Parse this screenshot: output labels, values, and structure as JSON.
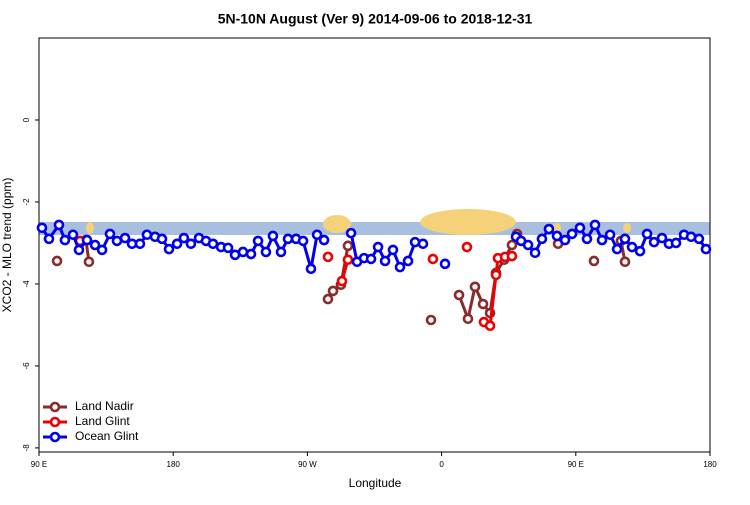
{
  "chart_data": {
    "type": "line",
    "title": "5N-10N August (Ver 9)   2014-09-06 to 2018-12-31",
    "x_label": "Longitude",
    "y_label": "XCO2 - MLO trend (ppm)",
    "xlim": [
      90,
      540
    ],
    "xticks": [
      {
        "value": 90,
        "label": "90 E"
      },
      180,
      {
        "value": 270,
        "label": "90 W"
      },
      {
        "value": 360,
        "label": "0"
      },
      {
        "value": 450,
        "label": "90 E"
      },
      {
        "value": 540,
        "label": "180"
      }
    ],
    "ylim": [
      -8.1,
      2.0
    ],
    "yticks": [
      -8,
      -6,
      -4,
      -2,
      0
    ],
    "grid": false,
    "legend": "bottom-left",
    "series": [
      {
        "name": "Land Nadir",
        "color": "#8b2a2a",
        "x": [
          102.1,
          null,
          121.5,
          123.5,
          null,
          283.8,
          287.2,
          292.5,
          297.2,
          null,
          352.9,
          null,
          371.7,
          377.7,
          382.4,
          387.8,
          392.5,
          396.5,
          401.9,
          407.2,
          410.6,
          null,
          438.1,
          null,
          462.2,
          null,
          480.3,
          483
        ],
        "values": [
          -3.44,
          null,
          -2.93,
          -3.46,
          null,
          -4.37,
          -4.17,
          -4.02,
          -3.07,
          null,
          -4.88,
          null,
          -4.27,
          -4.85,
          -4.07,
          -4.49,
          -4.71,
          -3.73,
          -3.41,
          -3.05,
          -2.78,
          null,
          -3.02,
          null,
          -3.44,
          null,
          -2.95,
          -3.46
        ]
      },
      {
        "name": "Land Glint",
        "color": "#ee0000",
        "x": [
          117.5,
          null,
          283.8,
          null,
          293.2,
          297.2,
          null,
          354.2,
          null,
          377,
          null,
          388.4,
          392.5,
          396.5,
          397.8,
          402.5,
          407.2
        ],
        "values": [
          -2.95,
          null,
          -3.34,
          null,
          -3.93,
          -3.41,
          null,
          -3.39,
          null,
          -3.1,
          null,
          -4.93,
          -5.02,
          -3.78,
          -3.37,
          -3.34,
          -3.32
        ]
      },
      {
        "name": "Ocean Glint",
        "color": "#0000ee",
        "x": [
          92,
          96.7,
          103.4,
          107.4,
          112.8,
          116.8,
          122.2,
          127.6,
          132.3,
          137.6,
          142.3,
          147.7,
          152.4,
          157.7,
          162.4,
          167.8,
          172.5,
          177.2,
          182.6,
          187.2,
          191.9,
          197.3,
          202,
          206.7,
          212.1,
          216.8,
          221.5,
          226.8,
          232.2,
          236.9,
          242.2,
          246.9,
          252.3,
          257,
          262.4,
          267.1,
          272.4,
          276.5,
          281.2,
          null,
          299.3,
          303.3,
          308,
          312.7,
          317.4,
          322.1,
          327.4,
          332.1,
          337.5,
          342.2,
          347.5,
          null,
          362.3,
          null,
          409.9,
          413.3,
          418,
          422.7,
          427.3,
          432,
          437.4,
          442.8,
          447.5,
          452.8,
          457.5,
          462.9,
          467.6,
          473,
          477.7,
          483,
          487.7,
          493.1,
          497.8,
          502.5,
          507.8,
          512.5,
          517.2,
          522.6,
          527.3,
          532.6,
          537.3
        ],
        "values": [
          -2.63,
          -2.9,
          -2.56,
          -2.93,
          -2.8,
          -3.17,
          -2.93,
          -3.05,
          -3.17,
          -2.78,
          -2.95,
          -2.88,
          -3.02,
          -3.02,
          -2.8,
          -2.85,
          -2.9,
          -3.15,
          -3.02,
          -2.88,
          -3.02,
          -2.88,
          -2.95,
          -3.02,
          -3.1,
          -3.12,
          -3.29,
          -3.22,
          -3.27,
          -2.95,
          -3.22,
          -2.83,
          -3.22,
          -2.9,
          -2.9,
          -2.95,
          -3.63,
          -2.8,
          -2.93,
          null,
          -2.76,
          -3.46,
          -3.37,
          -3.39,
          -3.1,
          -3.44,
          -3.17,
          -3.59,
          -3.44,
          -2.98,
          -3.02,
          null,
          -3.51,
          null,
          -2.85,
          -2.95,
          -3.05,
          -3.24,
          -2.9,
          -2.66,
          -2.83,
          -2.93,
          -2.78,
          -2.63,
          -2.9,
          -2.56,
          -2.93,
          -2.8,
          -3.15,
          -2.9,
          -3.1,
          -3.2,
          -2.78,
          -2.98,
          -2.88,
          -3.02,
          -3.0,
          -2.8,
          -2.85,
          -2.9,
          -3.15
        ]
      }
    ]
  }
}
